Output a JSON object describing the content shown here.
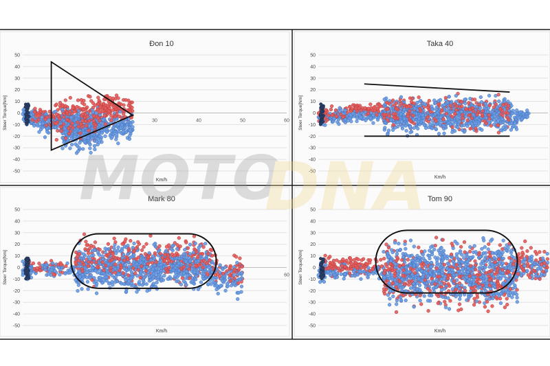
{
  "watermark": {
    "text_moto": "MOTO",
    "text_dna": "DNA",
    "color_moto": "#9a9a9a",
    "color_dna": "#f1d48a"
  },
  "colors": {
    "series_blue": "#6a9be0",
    "series_blue_edge": "#3f6fbf",
    "series_red": "#e35b5b",
    "series_red_edge": "#b83a3a",
    "grid": "#e2e2e2",
    "frame": "#1a1a1a",
    "overlay": "#111111"
  },
  "chart_data": [
    {
      "type": "scatter",
      "title": "Đon 10",
      "ylabel": "Steer Torque[Nm]",
      "xlabel": "Km/h",
      "ylim": [
        -50,
        50
      ],
      "xlim": [
        0,
        60
      ],
      "y_ticks": [
        "50",
        "40",
        "30",
        "20",
        "10",
        "0",
        "-10",
        "-20",
        "-30",
        "-40",
        "-50"
      ],
      "x_ticks": [
        {
          "value": 30,
          "label": "30"
        },
        {
          "value": 40,
          "label": "40"
        },
        {
          "value": 50,
          "label": "50"
        },
        {
          "value": 60,
          "label": "60"
        }
      ],
      "grid": true,
      "overlay_shape": "triangle",
      "series": [
        {
          "color_key": "red",
          "regions": [
            {
              "x": [
                2,
                7
              ],
              "y": [
                -15,
                8
              ],
              "n": 50
            },
            {
              "x": [
                7,
                17
              ],
              "y": [
                -30,
                18
              ],
              "n": 230
            },
            {
              "x": [
                17,
                25
              ],
              "y": [
                -15,
                20
              ],
              "n": 150
            }
          ]
        },
        {
          "color_key": "blue",
          "regions": [
            {
              "x": [
                0,
                3
              ],
              "y": [
                -15,
                8
              ],
              "n": 60
            },
            {
              "x": [
                3,
                9
              ],
              "y": [
                -22,
                5
              ],
              "n": 80
            },
            {
              "x": [
                9,
                18
              ],
              "y": [
                -38,
                10
              ],
              "n": 320
            },
            {
              "x": [
                18,
                25
              ],
              "y": [
                -28,
                5
              ],
              "n": 120
            }
          ]
        }
      ]
    },
    {
      "type": "scatter",
      "title": "Taka 40",
      "ylabel": "Steer Torque[Nm]",
      "xlabel": "Km/h",
      "ylim": [
        -50,
        50
      ],
      "xlim": [
        0,
        60
      ],
      "y_ticks": [
        "50",
        "40",
        "30",
        "20",
        "10",
        "0",
        "-10",
        "-20",
        "-30",
        "-40",
        "-50"
      ],
      "x_ticks": [],
      "grid": true,
      "overlay_shape": "two-lines",
      "series": [
        {
          "color_key": "red",
          "regions": [
            {
              "x": [
                0,
                8
              ],
              "y": [
                -10,
                8
              ],
              "n": 60
            },
            {
              "x": [
                8,
                17
              ],
              "y": [
                -5,
                10
              ],
              "n": 70
            },
            {
              "x": [
                17,
                50
              ],
              "y": [
                -20,
                20
              ],
              "n": 330
            }
          ]
        },
        {
          "color_key": "blue",
          "regions": [
            {
              "x": [
                0,
                8
              ],
              "y": [
                -12,
                6
              ],
              "n": 70
            },
            {
              "x": [
                8,
                17
              ],
              "y": [
                -10,
                5
              ],
              "n": 60
            },
            {
              "x": [
                17,
                52
              ],
              "y": [
                -22,
                17
              ],
              "n": 650
            },
            {
              "x": [
                52,
                55
              ],
              "y": [
                -8,
                6
              ],
              "n": 30
            }
          ]
        }
      ]
    },
    {
      "type": "scatter",
      "title": "Mark 80",
      "ylabel": "Steer Torque[Nm]",
      "xlabel": "Km/h",
      "ylim": [
        -50,
        50
      ],
      "xlim": [
        0,
        60
      ],
      "y_ticks": [
        "50",
        "40",
        "30",
        "20",
        "10",
        "0",
        "-10",
        "-20",
        "-30",
        "-40",
        "-50"
      ],
      "x_ticks": [
        {
          "value": 60,
          "label": "60"
        }
      ],
      "grid": true,
      "overlay_shape": "stadium",
      "series": [
        {
          "color_key": "red",
          "regions": [
            {
              "x": [
                1,
                10
              ],
              "y": [
                -8,
                8
              ],
              "n": 40
            },
            {
              "x": [
                12,
                43
              ],
              "y": [
                -20,
                32
              ],
              "n": 380
            },
            {
              "x": [
                43,
                50
              ],
              "y": [
                -18,
                14
              ],
              "n": 60
            }
          ]
        },
        {
          "color_key": "blue",
          "regions": [
            {
              "x": [
                0,
                2
              ],
              "y": [
                -12,
                8
              ],
              "n": 50
            },
            {
              "x": [
                2,
                12
              ],
              "y": [
                -10,
                6
              ],
              "n": 60
            },
            {
              "x": [
                12,
                43
              ],
              "y": [
                -25,
                25
              ],
              "n": 700
            },
            {
              "x": [
                43,
                50
              ],
              "y": [
                -35,
                12
              ],
              "n": 80
            }
          ]
        }
      ]
    },
    {
      "type": "scatter",
      "title": "Tom 90",
      "ylabel": "Steer Torque[Nm]",
      "xlabel": "Km/h",
      "ylim": [
        -50,
        50
      ],
      "xlim": [
        0,
        60
      ],
      "y_ticks": [
        "50",
        "40",
        "30",
        "20",
        "10",
        "0",
        "-10",
        "-20",
        "-30",
        "-40",
        "-50"
      ],
      "x_ticks": [],
      "grid": true,
      "overlay_shape": "stadium",
      "series": [
        {
          "color_key": "red",
          "regions": [
            {
              "x": [
                1,
                17
              ],
              "y": [
                -10,
                14
              ],
              "n": 120
            },
            {
              "x": [
                17,
                52
              ],
              "y": [
                -45,
                30
              ],
              "n": 420
            },
            {
              "x": [
                52,
                60
              ],
              "y": [
                -20,
                25
              ],
              "n": 70
            }
          ]
        },
        {
          "color_key": "blue",
          "regions": [
            {
              "x": [
                0,
                2
              ],
              "y": [
                -15,
                8
              ],
              "n": 50
            },
            {
              "x": [
                2,
                17
              ],
              "y": [
                -12,
                5
              ],
              "n": 80
            },
            {
              "x": [
                17,
                52
              ],
              "y": [
                -40,
                30
              ],
              "n": 800
            },
            {
              "x": [
                52,
                60
              ],
              "y": [
                -15,
                15
              ],
              "n": 60
            }
          ]
        }
      ]
    }
  ]
}
